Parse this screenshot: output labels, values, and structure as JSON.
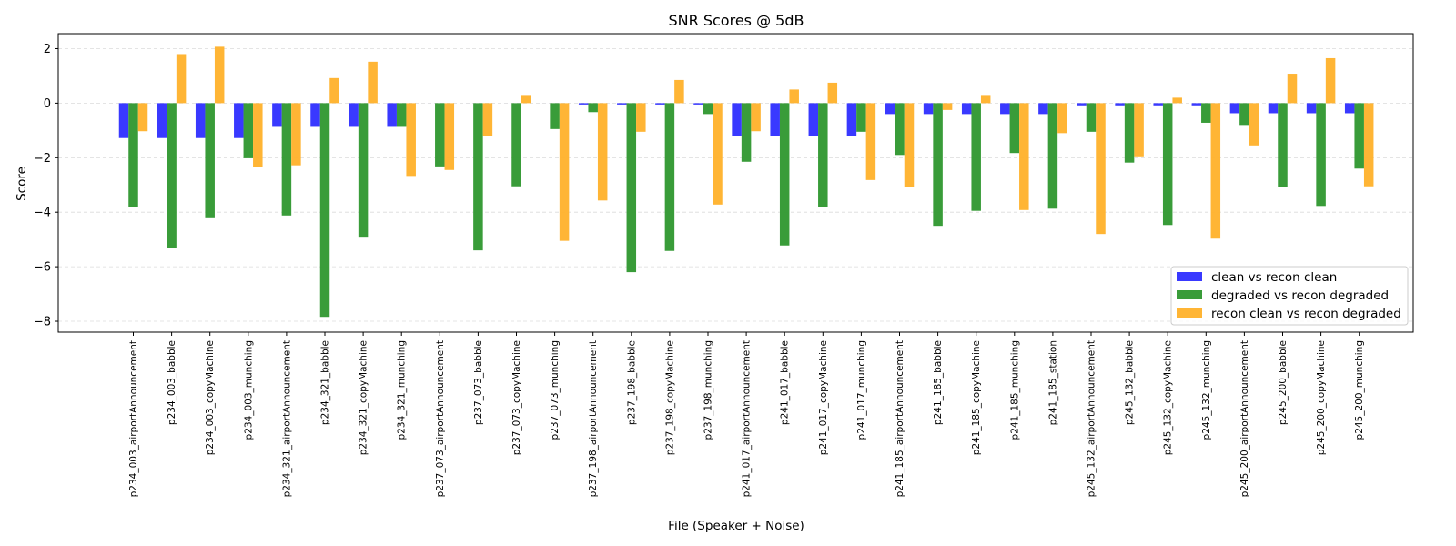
{
  "chart_data": {
    "type": "bar",
    "title": "SNR Scores @ 5dB",
    "xlabel": "File (Speaker + Noise)",
    "ylabel": "Score",
    "ylim": [
      -8.4,
      2.55
    ],
    "yticks": [
      2,
      0,
      -2,
      -4,
      -6,
      -8
    ],
    "grid": "y-dashed",
    "legend_position": "lower-right",
    "categories": [
      "p234_003_airportAnnouncement",
      "p234_003_babble",
      "p234_003_copyMachine",
      "p234_003_munching",
      "p234_321_airportAnnouncement",
      "p234_321_babble",
      "p234_321_copyMachine",
      "p234_321_munching",
      "p237_073_airportAnnouncement",
      "p237_073_babble",
      "p237_073_copyMachine",
      "p237_073_munching",
      "p237_198_airportAnnouncement",
      "p237_198_babble",
      "p237_198_copyMachine",
      "p237_198_munching",
      "p241_017_airportAnnouncement",
      "p241_017_babble",
      "p241_017_copyMachine",
      "p241_017_munching",
      "p241_185_airportAnnouncement",
      "p241_185_babble",
      "p241_185_copyMachine",
      "p241_185_munching",
      "p241_185_station",
      "p245_132_airportAnnouncement",
      "p245_132_babble",
      "p245_132_copyMachine",
      "p245_132_munching",
      "p245_200_airportAnnouncement",
      "p245_200_babble",
      "p245_200_copyMachine",
      "p245_200_munching"
    ],
    "series": [
      {
        "name": "clean vs recon clean",
        "color": "#3333ff",
        "values": [
          -1.28,
          -1.28,
          -1.28,
          -1.28,
          -0.87,
          -0.87,
          -0.87,
          -0.87,
          0.0,
          0.0,
          0.0,
          0.0,
          -0.05,
          -0.05,
          -0.05,
          -0.05,
          -1.2,
          -1.2,
          -1.2,
          -1.2,
          -0.4,
          -0.4,
          -0.4,
          -0.4,
          -0.4,
          -0.08,
          -0.08,
          -0.08,
          -0.08,
          -0.37,
          -0.37,
          -0.37,
          -0.37
        ]
      },
      {
        "name": "degraded vs recon degraded",
        "color": "#339933",
        "values": [
          -3.82,
          -5.32,
          -4.22,
          -2.02,
          -4.12,
          -7.84,
          -4.9,
          -0.87,
          -2.32,
          -5.4,
          -3.05,
          -0.95,
          -0.33,
          -6.2,
          -5.42,
          -0.4,
          -2.15,
          -5.22,
          -3.8,
          -1.05,
          -1.9,
          -4.5,
          -3.95,
          -1.83,
          -3.87,
          -1.05,
          -2.18,
          -4.47,
          -0.72,
          -0.8,
          -3.08,
          -3.77,
          -2.4
        ]
      },
      {
        "name": "recon clean vs recon degraded",
        "color": "#ffb32e",
        "values": [
          -1.03,
          1.8,
          2.07,
          -2.35,
          -2.28,
          0.92,
          1.52,
          -2.67,
          -2.45,
          -1.22,
          0.3,
          -5.05,
          -3.57,
          -1.05,
          0.85,
          -3.72,
          -1.03,
          0.5,
          0.75,
          -2.82,
          -3.08,
          -0.25,
          0.3,
          -3.92,
          -1.1,
          -4.8,
          -1.95,
          0.2,
          -4.97,
          -1.55,
          1.08,
          1.65,
          -3.05
        ]
      }
    ]
  }
}
